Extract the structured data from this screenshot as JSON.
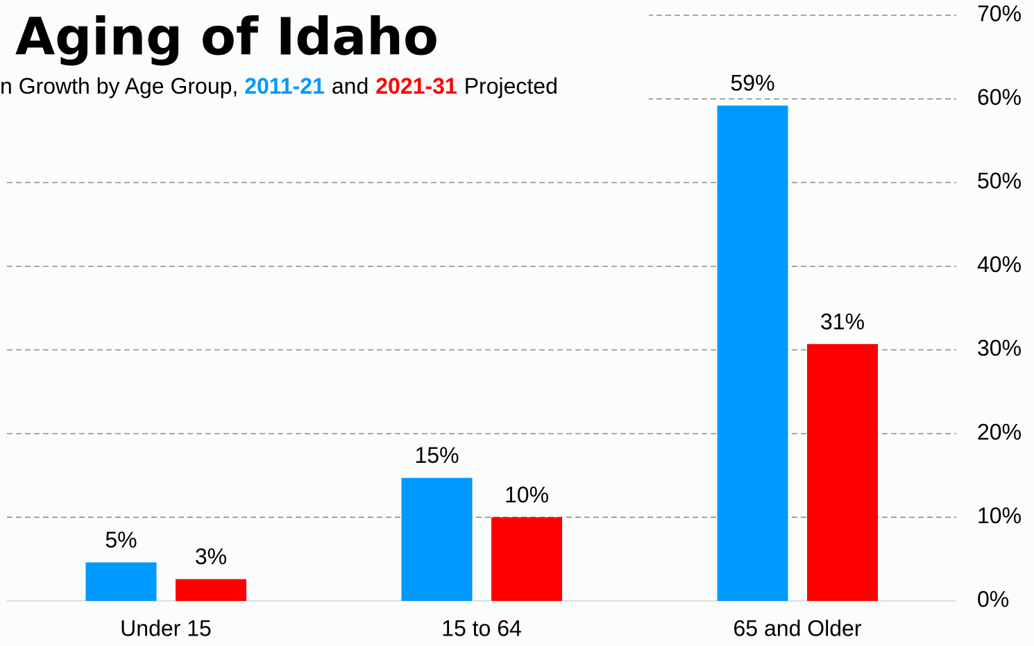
{
  "chart_data": {
    "type": "bar",
    "title": "Aging of Idaho",
    "subtitle_parts": [
      "n Growth by Age Group, ",
      "and",
      "Projected"
    ],
    "categories": [
      "Under 15",
      "15 to 64",
      "65 and Older"
    ],
    "series": [
      {
        "name": "2011-21",
        "color": "#0099ff",
        "values": [
          4.6,
          14.7,
          59.2
        ],
        "value_labels": [
          "5%",
          "15%",
          "59%"
        ]
      },
      {
        "name": "2021-31",
        "color": "#ff0000",
        "values": [
          2.6,
          10.0,
          30.7
        ],
        "value_labels": [
          "3%",
          "10%",
          "31%"
        ]
      }
    ],
    "ylim": [
      0,
      70
    ],
    "yticks": [
      {
        "value": 0,
        "label": "0%"
      },
      {
        "value": 10,
        "label": "10%"
      },
      {
        "value": 20,
        "label": "20%"
      },
      {
        "value": 30,
        "label": "30%"
      },
      {
        "value": 40,
        "label": "40%"
      },
      {
        "value": 50,
        "label": "50%"
      },
      {
        "value": 60,
        "label": "60%"
      },
      {
        "value": 70,
        "label": "70%"
      }
    ],
    "grid": true
  }
}
